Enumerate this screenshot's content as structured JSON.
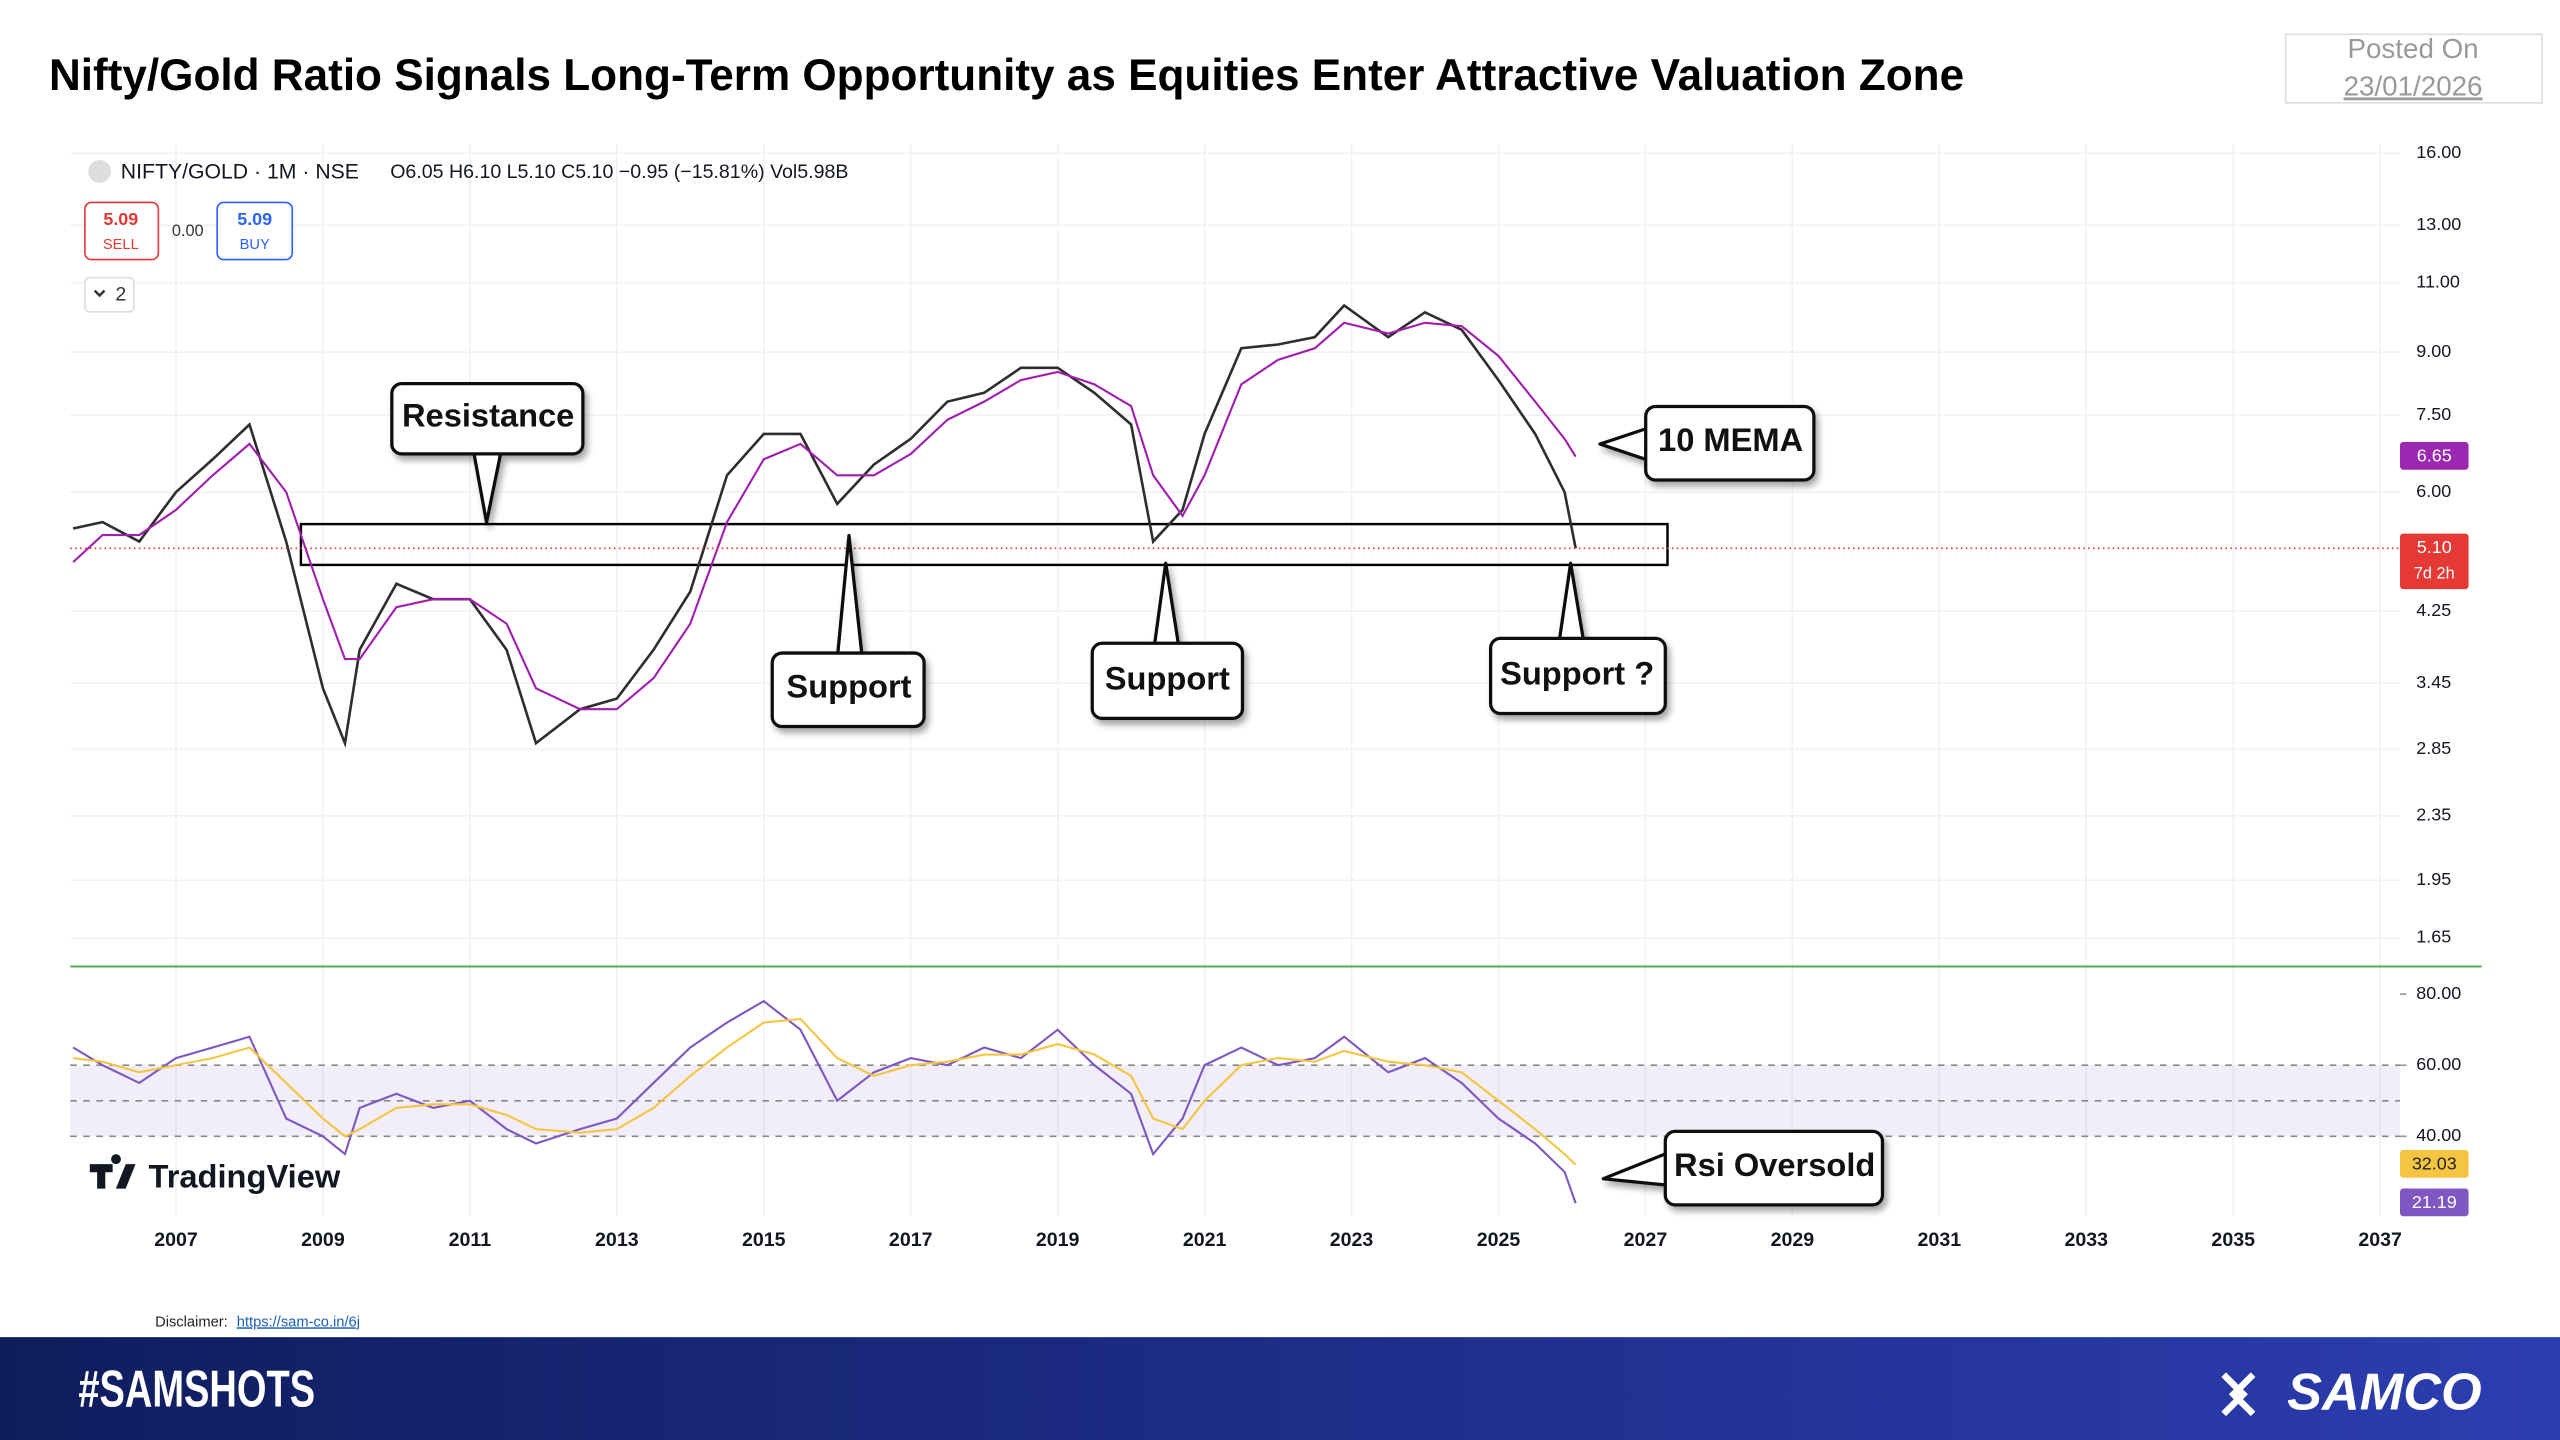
{
  "header": {
    "title": "Nifty/Gold Ratio Signals Long-Term Opportunity as Equities Enter Attractive Valuation Zone",
    "posted_label": "Posted On",
    "posted_date": "23/01/2026"
  },
  "chart_data": [
    {
      "type": "line",
      "symbol": "NIFTY/GOLD · 1M · NSE",
      "quote": "O6.05 H6.10 L5.10 C5.10 −0.95 (−15.81%) Vol5.98B",
      "trade": {
        "sell_price": "5.09",
        "sell_label": "SELL",
        "spread": "0.00",
        "buy_price": "5.09",
        "buy_label": "BUY"
      },
      "indicator_count": "2",
      "x": [
        2005.6,
        2006.0,
        2006.5,
        2007.0,
        2007.5,
        2008.0,
        2008.5,
        2009.0,
        2009.3,
        2009.5,
        2010.0,
        2010.5,
        2011.0,
        2011.5,
        2011.9,
        2012.5,
        2013.0,
        2013.5,
        2014.0,
        2014.5,
        2015.0,
        2015.5,
        2016.0,
        2016.5,
        2017.0,
        2017.5,
        2018.0,
        2018.5,
        2019.0,
        2019.5,
        2020.0,
        2020.3,
        2020.7,
        2021.0,
        2021.5,
        2022.0,
        2022.5,
        2022.9,
        2023.5,
        2024.0,
        2024.5,
        2025.0,
        2025.5,
        2025.9,
        2026.05
      ],
      "series": [
        {
          "color": "#2e2e2e",
          "values": [
            5.4,
            5.5,
            5.2,
            6.0,
            6.6,
            7.3,
            5.2,
            3.4,
            2.9,
            3.8,
            4.6,
            4.4,
            4.4,
            3.8,
            2.9,
            3.2,
            3.3,
            3.8,
            4.5,
            6.3,
            7.1,
            7.1,
            5.8,
            6.5,
            7.0,
            7.8,
            8.0,
            8.6,
            8.6,
            8.0,
            7.3,
            5.2,
            5.7,
            7.1,
            9.1,
            9.2,
            9.4,
            10.3,
            9.4,
            10.1,
            9.6,
            8.3,
            7.1,
            6.0,
            5.1
          ]
        },
        {
          "color": "#a21caf",
          "values": [
            4.9,
            5.3,
            5.3,
            5.7,
            6.3,
            6.9,
            6.0,
            4.4,
            3.7,
            3.7,
            4.3,
            4.4,
            4.4,
            4.1,
            3.4,
            3.2,
            3.2,
            3.5,
            4.1,
            5.5,
            6.6,
            6.9,
            6.3,
            6.3,
            6.7,
            7.4,
            7.8,
            8.3,
            8.5,
            8.2,
            7.7,
            6.3,
            5.6,
            6.3,
            8.2,
            8.8,
            9.1,
            9.8,
            9.5,
            9.8,
            9.7,
            8.9,
            7.8,
            7.0,
            6.65
          ]
        }
      ],
      "xlim": [
        2005.56,
        2037.27
      ],
      "yscale": "log",
      "ylim": [
        1.57,
        16.46
      ],
      "yticks": [
        {
          "value": 16,
          "label": "16.00"
        },
        {
          "value": 13,
          "label": "13.00"
        },
        {
          "value": 11,
          "label": "11.00"
        },
        {
          "value": 9,
          "label": "9.00"
        },
        {
          "value": 7.5,
          "label": "7.50"
        },
        {
          "value": 6,
          "label": "6.00"
        },
        {
          "value": 4.25,
          "label": "4.25"
        },
        {
          "value": 3.45,
          "label": "3.45"
        },
        {
          "value": 2.85,
          "label": "2.85"
        },
        {
          "value": 2.35,
          "label": "2.35"
        },
        {
          "value": 1.95,
          "label": "1.95"
        },
        {
          "value": 1.65,
          "label": "1.65"
        }
      ],
      "grid": true,
      "zone": {
        "x": [
          2008.7,
          2027.3
        ],
        "y": [
          4.86,
          5.47
        ]
      },
      "last_labels": [
        {
          "value": 6.65,
          "label": "6.65",
          "color": "#9c27b0"
        },
        {
          "value": 5.1,
          "label": "5.10",
          "sub": "7d 2h",
          "color": "#e53935"
        }
      ],
      "annotations": [
        "Resistance",
        "Support",
        "Support",
        "Support ?",
        "10 MEMA"
      ]
    },
    {
      "type": "line",
      "brand": "TradingView",
      "x": [
        2005.6,
        2006.0,
        2006.5,
        2007.0,
        2007.5,
        2008.0,
        2008.5,
        2009.0,
        2009.3,
        2009.5,
        2010.0,
        2010.5,
        2011.0,
        2011.5,
        2011.9,
        2012.5,
        2013.0,
        2013.5,
        2014.0,
        2014.5,
        2015.0,
        2015.5,
        2016.0,
        2016.5,
        2017.0,
        2017.5,
        2018.0,
        2018.5,
        2019.0,
        2019.5,
        2020.0,
        2020.3,
        2020.7,
        2021.0,
        2021.5,
        2022.0,
        2022.5,
        2022.9,
        2023.5,
        2024.0,
        2024.5,
        2025.0,
        2025.5,
        2025.9,
        2026.05
      ],
      "series": [
        {
          "color": "#7e57c2",
          "values": [
            65,
            60,
            55,
            62,
            65,
            68,
            45,
            40,
            35,
            48,
            52,
            48,
            50,
            42,
            38,
            42,
            45,
            55,
            65,
            72,
            78,
            70,
            50,
            58,
            62,
            60,
            65,
            62,
            70,
            60,
            52,
            35,
            45,
            60,
            65,
            60,
            62,
            68,
            58,
            62,
            55,
            45,
            38,
            30,
            21.19
          ]
        },
        {
          "color": "#f5c542",
          "values": [
            62,
            61,
            58,
            60,
            62,
            65,
            55,
            45,
            40,
            42,
            48,
            49,
            49,
            46,
            42,
            41,
            42,
            48,
            57,
            65,
            72,
            73,
            62,
            57,
            60,
            61,
            63,
            63,
            66,
            63,
            57,
            45,
            42,
            50,
            60,
            62,
            61,
            64,
            61,
            60,
            58,
            50,
            42,
            35,
            32.03
          ]
        }
      ],
      "xlim": [
        2005.56,
        2037.27
      ],
      "xticks": [
        2007,
        2009,
        2011,
        2013,
        2015,
        2017,
        2019,
        2021,
        2023,
        2025,
        2027,
        2029,
        2031,
        2033,
        2035,
        2037
      ],
      "ylim": [
        17.5,
        85
      ],
      "yticks": [
        {
          "value": 80,
          "label": "80.00"
        },
        {
          "value": 60,
          "label": "60.00"
        },
        {
          "value": 40,
          "label": "40.00"
        }
      ],
      "band": [
        40,
        60
      ],
      "dashed_levels": [
        60,
        50,
        40
      ],
      "last_labels": [
        {
          "value": 32.03,
          "label": "32.03",
          "color": "#f5c542",
          "text_color": "#222"
        },
        {
          "value": 21.19,
          "label": "21.19",
          "color": "#7e57c2",
          "text_color": "#fff"
        }
      ],
      "annotations": [
        "Rsi Oversold"
      ]
    }
  ],
  "disclaimer": {
    "label": "Disclaimer:",
    "link": "https://sam-co.in/6j"
  },
  "footer": {
    "hashtag": "#SAMSHOTS",
    "brand": "SAMCO"
  }
}
